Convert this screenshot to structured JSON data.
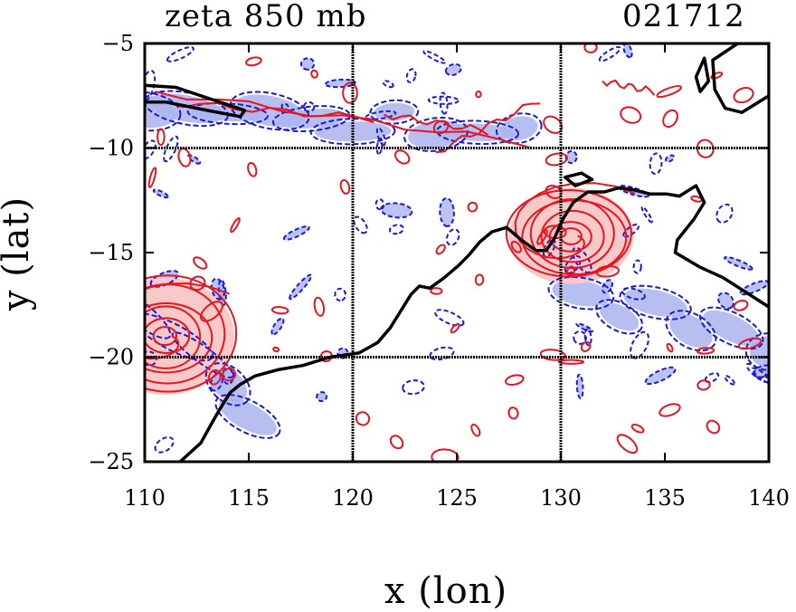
{
  "header": {
    "title_left": "zeta 850 mb",
    "title_right": "021712"
  },
  "chart_data": {
    "type": "contour-map",
    "title": "zeta 850 mb",
    "subtitle": "021712",
    "xlabel": "x (lon)",
    "ylabel": "y (lat)",
    "xlim": [
      110,
      140
    ],
    "ylim": [
      -25,
      -5
    ],
    "xticks": [
      110,
      115,
      120,
      125,
      130,
      135,
      140
    ],
    "yticks": [
      -5,
      -10,
      -15,
      -20,
      -25
    ],
    "gridlines_x": [
      120,
      130
    ],
    "gridlines_y": [
      -10,
      -20
    ],
    "colors": {
      "positive_line": "#e8141e",
      "positive_fill": "#f7c9c9",
      "negative_line": "#1a1ad6",
      "negative_fill": "#aab4ee",
      "coast": "#000000",
      "grid": "#000000"
    },
    "coastline": [
      [
        111.7,
        -25
      ],
      [
        112.7,
        -24.1
      ],
      [
        113.2,
        -23.2
      ],
      [
        113.6,
        -22.5
      ],
      [
        114.1,
        -21.7
      ],
      [
        114.6,
        -21.3
      ],
      [
        115.3,
        -20.9
      ],
      [
        116.4,
        -20.6
      ],
      [
        117.6,
        -20.4
      ],
      [
        118.9,
        -20.0
      ],
      [
        120.3,
        -19.8
      ],
      [
        121.2,
        -19.3
      ],
      [
        121.8,
        -18.6
      ],
      [
        122.3,
        -17.8
      ],
      [
        122.8,
        -17.0
      ],
      [
        123.2,
        -16.6
      ],
      [
        123.7,
        -16.7
      ],
      [
        124.4,
        -16.2
      ],
      [
        125.1,
        -15.6
      ],
      [
        125.6,
        -15.1
      ],
      [
        126.1,
        -14.5
      ],
      [
        126.7,
        -14.0
      ],
      [
        127.4,
        -13.8
      ],
      [
        128.1,
        -14.4
      ],
      [
        128.8,
        -14.9
      ],
      [
        129.3,
        -14.9
      ],
      [
        129.7,
        -14.3
      ],
      [
        130.1,
        -13.4
      ],
      [
        130.6,
        -12.6
      ],
      [
        131.3,
        -12.1
      ],
      [
        132.1,
        -12.1
      ],
      [
        132.8,
        -11.9
      ],
      [
        133.5,
        -12.0
      ],
      [
        134.3,
        -12.2
      ],
      [
        135.1,
        -12.2
      ],
      [
        135.7,
        -12.3
      ],
      [
        136.5,
        -11.8
      ],
      [
        136.9,
        -12.6
      ],
      [
        136.4,
        -13.4
      ],
      [
        135.6,
        -14.4
      ],
      [
        135.5,
        -15.0
      ],
      [
        136.7,
        -15.7
      ],
      [
        137.8,
        -16.2
      ],
      [
        138.9,
        -16.9
      ],
      [
        140.0,
        -17.6
      ]
    ],
    "islands": [
      [
        [
          130.2,
          -11.4
        ],
        [
          131.0,
          -11.2
        ],
        [
          131.5,
          -11.5
        ],
        [
          130.7,
          -11.8
        ],
        [
          130.2,
          -11.4
        ]
      ],
      [
        [
          136.5,
          -6.6
        ],
        [
          136.9,
          -5.7
        ],
        [
          137.1,
          -6.8
        ],
        [
          136.7,
          -7.3
        ],
        [
          136.5,
          -6.6
        ]
      ],
      [
        [
          137.3,
          -5.8
        ],
        [
          138.5,
          -5.0
        ],
        [
          140.0,
          -5.0
        ],
        [
          140.0,
          -7.5
        ],
        [
          138.7,
          -8.3
        ],
        [
          137.9,
          -8.1
        ],
        [
          137.4,
          -7.2
        ],
        [
          137.3,
          -5.8
        ]
      ],
      [
        [
          110.0,
          -7.0
        ],
        [
          111.5,
          -7.1
        ],
        [
          113.0,
          -7.6
        ],
        [
          114.8,
          -8.2
        ],
        [
          114.6,
          -8.5
        ],
        [
          113.0,
          -8.2
        ],
        [
          111.0,
          -7.8
        ],
        [
          110.0,
          -7.8
        ]
      ]
    ],
    "positive_vorticity_regions": [
      {
        "name": "cyclone-west",
        "center": [
          111.0,
          -19.0
        ],
        "radius_lon": 3.3,
        "radius_lat": 2.8
      },
      {
        "name": "cyclone-north",
        "center": [
          130.5,
          -14.2
        ],
        "radius_lon": 3.0,
        "radius_lat": 2.3
      }
    ],
    "negative_vorticity_bands": [
      {
        "name": "northern-band",
        "from": [
          110.0,
          -8.5
        ],
        "to": [
          128.0,
          -8.8
        ]
      },
      {
        "name": "southwest-band",
        "from": [
          110.0,
          -18.0
        ],
        "to": [
          115.0,
          -22.5
        ]
      },
      {
        "name": "east-band",
        "from": [
          131.0,
          -17.0
        ],
        "to": [
          140.0,
          -19.5
        ]
      }
    ]
  }
}
